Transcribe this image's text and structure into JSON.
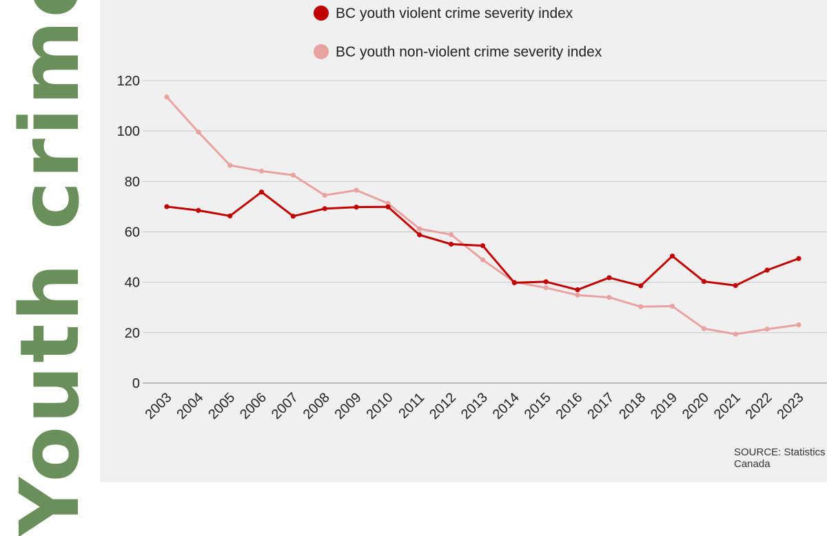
{
  "side_title": "Youth crime",
  "source": "SOURCE: Statistics Canada",
  "chart_data": {
    "type": "line",
    "title": "",
    "xlabel": "",
    "ylabel": "",
    "ylim": [
      0,
      120
    ],
    "yticks": [
      0,
      20,
      40,
      60,
      80,
      100,
      120
    ],
    "grid": true,
    "legend_position": "top",
    "x": [
      "2003",
      "2004",
      "2005",
      "2006",
      "2007",
      "2008",
      "2009",
      "2010",
      "2011",
      "2012",
      "2013",
      "2014",
      "2015",
      "2016",
      "2017",
      "2018",
      "2019",
      "2020",
      "2021",
      "2022",
      "2023"
    ],
    "series": [
      {
        "name": "BC youth violent crime severity index",
        "color": "#c00000",
        "values": [
          70.0,
          68.5,
          66.3,
          75.8,
          66.2,
          69.2,
          69.8,
          69.9,
          58.8,
          55.1,
          54.5,
          39.8,
          40.2,
          37.0,
          41.8,
          38.6,
          50.4,
          40.3,
          38.7,
          44.8,
          49.4
        ]
      },
      {
        "name": "BC youth non-violent crime severity index",
        "color": "#e8a3a1",
        "values": [
          113.5,
          99.6,
          86.4,
          84.1,
          82.5,
          74.5,
          76.5,
          71.3,
          61.2,
          58.9,
          48.9,
          40.1,
          37.8,
          34.9,
          34.0,
          30.3,
          30.5,
          21.6,
          19.4,
          21.4,
          23.1
        ]
      }
    ]
  }
}
